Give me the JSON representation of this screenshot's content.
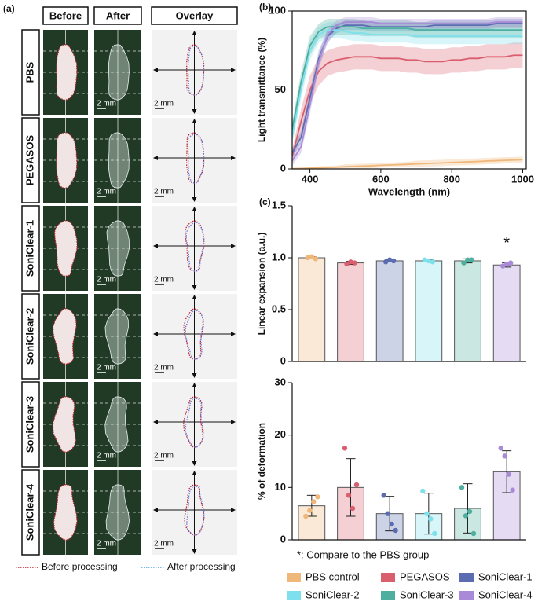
{
  "panel_a": {
    "label": "(a)",
    "columns": [
      "Before",
      "After",
      "Overlay"
    ],
    "rows": [
      "PBS",
      "PEGASOS",
      "SoniClear-1",
      "SoniClear-2",
      "SoniClear-3",
      "SoniClear-4"
    ],
    "scale_label": "2 mm",
    "legend": [
      "Before processing",
      "After processing"
    ]
  },
  "chart_data": [
    {
      "type": "line",
      "panel": "(b)",
      "x_label": "Wavelength (nm)",
      "y_label": "Light transmittance (%)",
      "x": [
        350,
        375,
        400,
        425,
        450,
        475,
        500,
        525,
        550,
        575,
        600,
        625,
        650,
        675,
        700,
        725,
        750,
        775,
        800,
        825,
        850,
        875,
        900,
        925,
        950,
        975,
        1000
      ],
      "xlim": [
        350,
        1010
      ],
      "xticks": [
        400,
        600,
        800,
        1000
      ],
      "ylim": [
        0,
        100
      ],
      "yticks": [
        0,
        50,
        100
      ],
      "series": [
        {
          "name": "PBS control",
          "color": "#f0b77a",
          "values": [
            0,
            0.2,
            0.5,
            0.7,
            0.9,
            1.1,
            1.4,
            1.6,
            1.8,
            2,
            2.3,
            2.5,
            2.7,
            2.9,
            3.2,
            3.4,
            3.6,
            3.8,
            4.1,
            4.3,
            4.5,
            4.7,
            5,
            5.2,
            5.4,
            5.6,
            5.8
          ],
          "errors": [
            1,
            1,
            1,
            1,
            1,
            1,
            1.5,
            1.5,
            1.5,
            1.5,
            1.5,
            1.5,
            1.5,
            1.5,
            2,
            2,
            2,
            2,
            2,
            2,
            2,
            2,
            2,
            2,
            2,
            2,
            2
          ]
        },
        {
          "name": "PEGASOS",
          "color": "#d95f6f",
          "values": [
            8,
            30,
            50,
            62,
            67,
            69,
            70,
            71,
            71,
            71,
            70,
            70,
            70,
            69,
            69,
            68,
            68,
            68,
            69,
            69,
            70,
            70,
            71,
            71,
            71,
            72,
            72
          ],
          "errors": [
            4,
            8,
            9,
            9,
            8,
            8,
            8,
            8,
            8,
            8,
            8,
            8,
            8,
            8,
            8,
            8,
            8,
            8,
            8,
            8,
            8,
            8,
            8,
            8,
            8,
            8,
            8
          ]
        },
        {
          "name": "SoniClear-1",
          "color": "#5b6db0",
          "values": [
            10,
            20,
            45,
            70,
            84,
            89,
            91,
            91,
            91,
            90,
            90,
            90,
            90,
            90,
            90,
            90,
            91,
            91,
            91,
            91,
            91,
            91,
            91,
            92,
            92,
            92,
            92
          ],
          "errors": [
            3,
            4,
            5,
            5,
            4,
            3,
            3,
            3,
            3,
            3,
            3,
            3,
            3,
            3,
            3,
            3,
            3,
            3,
            3,
            3,
            3,
            3,
            3,
            3,
            3,
            3,
            3
          ]
        },
        {
          "name": "SoniClear-2",
          "color": "#7ee0ec",
          "values": [
            20,
            50,
            75,
            85,
            88,
            88,
            87,
            86,
            86,
            85,
            85,
            85,
            85,
            85,
            84,
            84,
            84,
            84,
            84,
            84,
            84,
            84,
            84,
            84,
            84,
            84,
            84
          ],
          "errors": [
            5,
            6,
            6,
            5,
            5,
            5,
            5,
            5,
            5,
            5,
            5,
            5,
            5,
            5,
            5,
            5,
            5,
            5,
            5,
            5,
            5,
            5,
            5,
            5,
            5,
            5,
            5
          ]
        },
        {
          "name": "SoniClear-3",
          "color": "#4eae9f",
          "values": [
            25,
            55,
            78,
            87,
            90,
            90,
            90,
            90,
            89,
            89,
            89,
            89,
            89,
            89,
            88,
            88,
            88,
            88,
            88,
            88,
            88,
            88,
            88,
            88,
            88,
            88,
            88
          ],
          "errors": [
            5,
            6,
            6,
            5,
            5,
            5,
            5,
            5,
            5,
            5,
            5,
            5,
            5,
            5,
            5,
            5,
            5,
            5,
            5,
            5,
            5,
            5,
            5,
            5,
            5,
            5,
            5
          ]
        },
        {
          "name": "SoniClear-4",
          "color": "#a98ad8",
          "values": [
            5,
            14,
            40,
            68,
            85,
            91,
            93,
            93,
            93,
            93,
            92,
            92,
            92,
            92,
            92,
            92,
            92,
            92,
            92,
            92,
            92,
            92,
            92,
            93,
            93,
            93,
            93
          ],
          "errors": [
            3,
            4,
            5,
            5,
            4,
            3,
            3,
            3,
            3,
            3,
            3,
            3,
            3,
            3,
            3,
            3,
            3,
            3,
            3,
            3,
            3,
            3,
            3,
            3,
            3,
            3,
            3
          ]
        }
      ]
    },
    {
      "type": "bar",
      "panel": "(c)",
      "y_label": "Linear expansion (a.u.)",
      "annotation": "*",
      "ylim": [
        0,
        1.5
      ],
      "yticks": [
        0,
        0.5,
        {
          "value": 1,
          "label": "1.0"
        },
        1.5
      ],
      "series": [
        {
          "name": "PBS control",
          "color": "#f0b77a",
          "value": 1.0,
          "error": 0.01,
          "points": [
            1.0,
            1.01,
            0.99
          ]
        },
        {
          "name": "PEGASOS",
          "color": "#d95f6f",
          "value": 0.95,
          "error": 0.015,
          "points": [
            0.94,
            0.96,
            0.95
          ]
        },
        {
          "name": "SoniClear-1",
          "color": "#5b6db0",
          "value": 0.97,
          "error": 0.01,
          "points": [
            0.96,
            0.98,
            0.97
          ]
        },
        {
          "name": "SoniClear-2",
          "color": "#7ee0ec",
          "value": 0.97,
          "error": 0.01,
          "points": [
            0.98,
            0.97,
            0.96
          ]
        },
        {
          "name": "SoniClear-3",
          "color": "#4eae9f",
          "value": 0.97,
          "error": 0.02,
          "points": [
            0.95,
            0.98,
            0.98
          ]
        },
        {
          "name": "SoniClear-4",
          "color": "#a98ad8",
          "value": 0.93,
          "error": 0.02,
          "points": [
            0.92,
            0.94,
            0.95
          ]
        }
      ]
    },
    {
      "type": "bar",
      "y_label": "% of deformation",
      "note": "*: Compare to the PBS group",
      "ylim": [
        0,
        30
      ],
      "yticks": [
        0,
        10,
        20,
        30
      ],
      "series": [
        {
          "color": "#f0b77a",
          "value": 6.5,
          "error": 2,
          "points": [
            4.5,
            5.6,
            7.3,
            8.2
          ]
        },
        {
          "color": "#d95f6f",
          "value": 10,
          "error": 5.5,
          "points": [
            17.5,
            8.5,
            6,
            10.5
          ]
        },
        {
          "color": "#5b6db0",
          "value": 5,
          "error": 3.3,
          "points": [
            8.5,
            5,
            3,
            1.8
          ]
        },
        {
          "color": "#7ee0ec",
          "value": 5,
          "error": 3.9,
          "points": [
            9.3,
            5,
            4,
            1.2
          ]
        },
        {
          "color": "#4eae9f",
          "value": 6,
          "error": 4.7,
          "points": [
            10,
            4.6,
            5.4,
            1.2
          ]
        },
        {
          "color": "#a98ad8",
          "value": 13,
          "error": 4,
          "points": [
            17.5,
            16,
            12.5,
            9.5
          ]
        }
      ]
    }
  ]
}
